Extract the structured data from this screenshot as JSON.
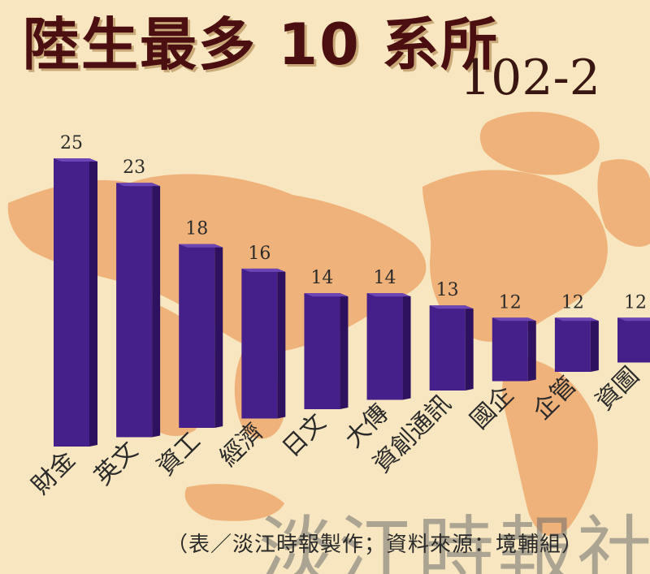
{
  "header": {
    "title": "陸生最多 10 系所",
    "subtitle": "102-2"
  },
  "footer": {
    "source_note": "（表／淡江時報製作；資料來源：境輔組）",
    "watermark": "淡江時報社"
  },
  "colors": {
    "background": "#f7e6bf",
    "map_land": "#efb27a",
    "bar_front": "#45208a",
    "bar_side": "#2e1260",
    "bar_top": "#6c46b4",
    "title": "#4b0f12"
  },
  "chart_data": {
    "type": "bar",
    "title": "陸生最多 10 系所",
    "subtitle": "102-2",
    "categories": [
      "財金",
      "英文",
      "資工",
      "經濟",
      "日文",
      "大傳",
      "資創通訊",
      "國企",
      "企管",
      "資圖"
    ],
    "values": [
      25,
      23,
      18,
      16,
      14,
      14,
      13,
      12,
      12,
      12
    ],
    "xlabel": "",
    "ylabel": "",
    "ylim": [
      0,
      25
    ],
    "grid": false,
    "legend": "none"
  }
}
